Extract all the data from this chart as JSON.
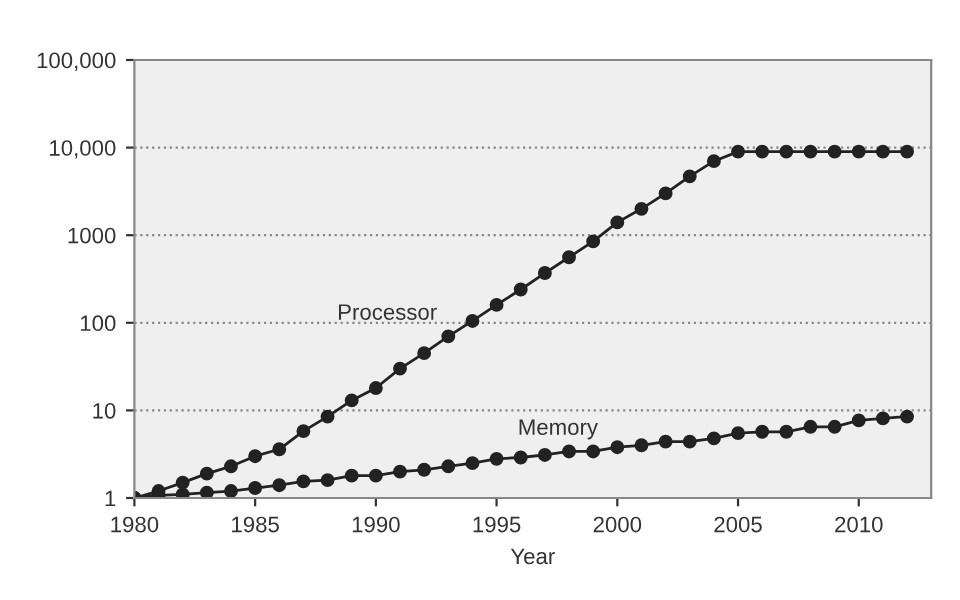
{
  "chart_data": {
    "type": "line",
    "xlabel": "Year",
    "x": [
      1980,
      1981,
      1982,
      1983,
      1984,
      1985,
      1986,
      1987,
      1988,
      1989,
      1990,
      1991,
      1992,
      1993,
      1994,
      1995,
      1996,
      1997,
      1998,
      1999,
      2000,
      2001,
      2002,
      2003,
      2004,
      2005,
      2006,
      2007,
      2008,
      2009,
      2010,
      2011,
      2012
    ],
    "series": [
      {
        "name": "Processor",
        "color": "#222222",
        "values": [
          1,
          1.2,
          1.5,
          1.9,
          2.3,
          3.0,
          3.6,
          5.8,
          8.5,
          13,
          18,
          30,
          45,
          70,
          105,
          160,
          240,
          370,
          560,
          850,
          1400,
          2000,
          3000,
          4700,
          7000,
          9000,
          9000,
          9000,
          9000,
          9000,
          9000,
          9000,
          9000
        ]
      },
      {
        "name": "Memory",
        "color": "#222222",
        "values": [
          1,
          1.07,
          1.1,
          1.15,
          1.2,
          1.3,
          1.4,
          1.55,
          1.6,
          1.8,
          1.8,
          2.0,
          2.1,
          2.3,
          2.5,
          2.8,
          2.9,
          3.1,
          3.4,
          3.4,
          3.8,
          4.0,
          4.4,
          4.4,
          4.8,
          5.5,
          5.7,
          5.7,
          6.5,
          6.5,
          7.7,
          8.1,
          8.5
        ]
      }
    ],
    "log": "y",
    "xlim": [
      1980,
      2013
    ],
    "ylim": [
      1,
      100000
    ],
    "xticks": [
      1980,
      1985,
      1990,
      1995,
      2000,
      2005,
      2010
    ],
    "yticks": [
      1,
      10,
      100,
      1000,
      {
        "value": 10000,
        "label": "10,000"
      },
      {
        "value": 100000,
        "label": "100,000"
      }
    ],
    "grid": "y",
    "marker": "circle",
    "line_style": "solid"
  }
}
